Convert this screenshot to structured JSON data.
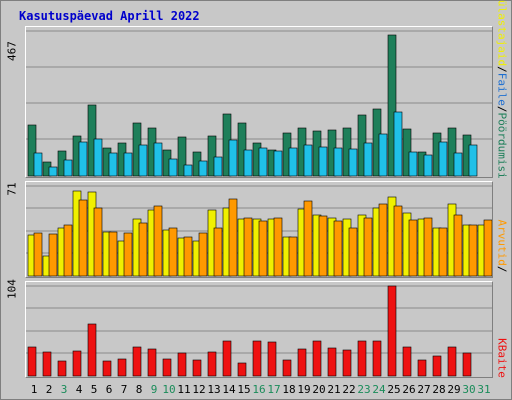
{
  "title": "Kasutuspäevad Aprill 2022",
  "colors": {
    "title": "#0000cc",
    "visits": "#1e7f5a",
    "files": "#20c0e8",
    "pages": "#0000aa",
    "hits": "#ff9900",
    "visitors": "#f0f000",
    "bytes": "#ee1111",
    "weekend": "#1a8c5a"
  },
  "right_labels": {
    "top_pages": "Pöördumisi",
    "top_files": "Faile",
    "top_visitors": "Külastajaid",
    "mid_hits": "Arvutid",
    "bottom_bytes": "KBaite",
    "sep": "/"
  },
  "chart_data": [
    {
      "type": "bar",
      "panel": "top",
      "ymax_label": "467",
      "ylim": [
        0,
        467
      ],
      "categories": [
        "1",
        "2",
        "3",
        "4",
        "5",
        "6",
        "7",
        "8",
        "9",
        "10",
        "11",
        "12",
        "13",
        "14",
        "15",
        "16",
        "17",
        "18",
        "19",
        "20",
        "21",
        "22",
        "23",
        "24",
        "25",
        "26",
        "27",
        "28",
        "29",
        "30",
        "31"
      ],
      "weekend_days": [
        "3",
        "9",
        "10",
        "16",
        "17",
        "23",
        "24",
        "30",
        "31"
      ],
      "series": [
        {
          "name": "Pöördumisi",
          "values": [
            165,
            45,
            80,
            130,
            230,
            90,
            105,
            170,
            155,
            85,
            125,
            78,
            130,
            200,
            170,
            105,
            85,
            140,
            155,
            145,
            148,
            155,
            195,
            215,
            455,
            150,
            78,
            140,
            155,
            132,
            0
          ]
        },
        {
          "name": "Faile",
          "values": [
            75,
            30,
            50,
            110,
            120,
            75,
            75,
            100,
            105,
            55,
            35,
            48,
            60,
            115,
            85,
            90,
            80,
            90,
            100,
            95,
            90,
            88,
            105,
            135,
            205,
            78,
            68,
            110,
            75,
            100,
            0
          ]
        }
      ]
    },
    {
      "type": "bar",
      "panel": "middle",
      "ymax_label": "71",
      "ylim": [
        0,
        71
      ],
      "categories": [
        "1",
        "2",
        "3",
        "4",
        "5",
        "6",
        "7",
        "8",
        "9",
        "10",
        "11",
        "12",
        "13",
        "14",
        "15",
        "16",
        "17",
        "18",
        "19",
        "20",
        "21",
        "22",
        "23",
        "24",
        "25",
        "26",
        "27",
        "28",
        "29",
        "30",
        "31"
      ],
      "series": [
        {
          "name": "Külastajaid",
          "values": [
            32,
            16,
            38,
            67,
            66,
            35,
            28,
            45,
            52,
            36,
            30,
            28,
            52,
            54,
            45,
            45,
            45,
            31,
            53,
            48,
            46,
            45,
            48,
            54,
            62,
            50,
            45,
            38,
            57,
            40,
            40
          ]
        },
        {
          "name": "Arvutid",
          "values": [
            34,
            33,
            40,
            60,
            54,
            35,
            34,
            42,
            55,
            38,
            31,
            34,
            38,
            61,
            46,
            43,
            46,
            31,
            59,
            47,
            43,
            38,
            46,
            57,
            55,
            44,
            46,
            38,
            48,
            40,
            44
          ]
        }
      ]
    },
    {
      "type": "bar",
      "panel": "bottom",
      "ymax_label": "104",
      "ylim": [
        0,
        104
      ],
      "categories": [
        "1",
        "2",
        "3",
        "4",
        "5",
        "6",
        "7",
        "8",
        "9",
        "10",
        "11",
        "12",
        "13",
        "14",
        "15",
        "16",
        "17",
        "18",
        "19",
        "20",
        "21",
        "22",
        "23",
        "24",
        "25",
        "26",
        "27",
        "28",
        "29",
        "30",
        "31"
      ],
      "series": [
        {
          "name": "KBaite",
          "values": [
            33,
            28,
            17,
            29,
            60,
            17,
            20,
            33,
            31,
            20,
            27,
            18,
            28,
            41,
            15,
            40,
            39,
            19,
            31,
            40,
            32,
            30,
            40,
            41,
            104,
            34,
            19,
            23,
            33,
            26,
            0
          ]
        }
      ]
    }
  ]
}
